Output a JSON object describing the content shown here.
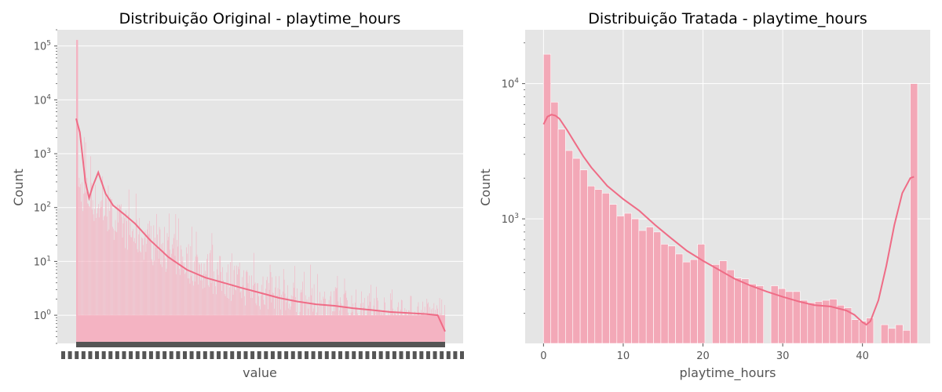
{
  "chart_data": [
    {
      "type": "bar",
      "title": "Distribuição Original - playtime_hours",
      "xlabel": "value",
      "ylabel": "Count",
      "yscale": "log",
      "ylim": [
        0.3,
        200000
      ],
      "yticks": [
        {
          "base": "10",
          "exp": "0",
          "value": 1
        },
        {
          "base": "10",
          "exp": "1",
          "value": 10
        },
        {
          "base": "10",
          "exp": "2",
          "value": 100
        },
        {
          "base": "10",
          "exp": "3",
          "value": 1000
        },
        {
          "base": "10",
          "exp": "4",
          "value": 10000
        },
        {
          "base": "10",
          "exp": "5",
          "value": 100000
        }
      ],
      "first_bar_value": 130000,
      "bar_value_profile": [
        {
          "position": 0.0,
          "typical": 300,
          "peak": 5000
        },
        {
          "position": 0.05,
          "typical": 150,
          "peak": 800
        },
        {
          "position": 0.15,
          "typical": 40,
          "peak": 200
        },
        {
          "position": 0.35,
          "typical": 8,
          "peak": 40
        },
        {
          "position": 0.6,
          "typical": 2,
          "peak": 10
        },
        {
          "position": 1.0,
          "typical": 1,
          "peak": 2
        }
      ],
      "kde": [
        {
          "x": 0.0,
          "y": 4500
        },
        {
          "x": 0.01,
          "y": 2500
        },
        {
          "x": 0.025,
          "y": 300
        },
        {
          "x": 0.035,
          "y": 150
        },
        {
          "x": 0.045,
          "y": 250
        },
        {
          "x": 0.06,
          "y": 450
        },
        {
          "x": 0.08,
          "y": 180
        },
        {
          "x": 0.1,
          "y": 110
        },
        {
          "x": 0.13,
          "y": 75
        },
        {
          "x": 0.16,
          "y": 50
        },
        {
          "x": 0.2,
          "y": 25
        },
        {
          "x": 0.25,
          "y": 12
        },
        {
          "x": 0.3,
          "y": 7
        },
        {
          "x": 0.35,
          "y": 5
        },
        {
          "x": 0.4,
          "y": 4
        },
        {
          "x": 0.45,
          "y": 3.2
        },
        {
          "x": 0.5,
          "y": 2.6
        },
        {
          "x": 0.55,
          "y": 2.1
        },
        {
          "x": 0.6,
          "y": 1.8
        },
        {
          "x": 0.65,
          "y": 1.6
        },
        {
          "x": 0.7,
          "y": 1.5
        },
        {
          "x": 0.75,
          "y": 1.35
        },
        {
          "x": 0.8,
          "y": 1.25
        },
        {
          "x": 0.85,
          "y": 1.15
        },
        {
          "x": 0.9,
          "y": 1.1
        },
        {
          "x": 0.95,
          "y": 1.05
        },
        {
          "x": 0.98,
          "y": 1.0
        },
        {
          "x": 1.0,
          "y": 0.5
        }
      ],
      "colors": {
        "bars": "#f4b3c2",
        "kde": "#ef6c86",
        "axes_bg": "#e5e5e5",
        "grid": "#ffffff",
        "xtick_labels": "#555555"
      }
    },
    {
      "type": "bar",
      "title": "Distribuição Tratada - playtime_hours",
      "xlabel": "playtime_hours",
      "ylabel": "Count",
      "yscale": "log",
      "xlim": [
        -2.3,
        48.5
      ],
      "ylim": [
        120,
        25000
      ],
      "xticks": [
        0,
        10,
        20,
        30,
        40
      ],
      "yticks": [
        {
          "base": "10",
          "exp": "3",
          "value": 1000
        },
        {
          "base": "10",
          "exp": "4",
          "value": 10000
        }
      ],
      "bin_width": 0.92,
      "bins": [
        {
          "x": 0.46,
          "y": 16500
        },
        {
          "x": 1.38,
          "y": 7300
        },
        {
          "x": 2.3,
          "y": 4600
        },
        {
          "x": 3.22,
          "y": 3200
        },
        {
          "x": 4.14,
          "y": 2800
        },
        {
          "x": 5.06,
          "y": 2300
        },
        {
          "x": 5.98,
          "y": 1750
        },
        {
          "x": 6.9,
          "y": 1650
        },
        {
          "x": 7.82,
          "y": 1550
        },
        {
          "x": 8.74,
          "y": 1280
        },
        {
          "x": 9.66,
          "y": 1050
        },
        {
          "x": 10.58,
          "y": 1100
        },
        {
          "x": 11.5,
          "y": 1000
        },
        {
          "x": 12.42,
          "y": 820
        },
        {
          "x": 13.34,
          "y": 870
        },
        {
          "x": 14.26,
          "y": 800
        },
        {
          "x": 15.18,
          "y": 650
        },
        {
          "x": 16.1,
          "y": 630
        },
        {
          "x": 17.02,
          "y": 550
        },
        {
          "x": 17.94,
          "y": 480
        },
        {
          "x": 18.86,
          "y": 500
        },
        {
          "x": 19.78,
          "y": 650
        },
        {
          "x": 21.62,
          "y": 460
        },
        {
          "x": 22.54,
          "y": 490
        },
        {
          "x": 23.46,
          "y": 420
        },
        {
          "x": 24.38,
          "y": 365
        },
        {
          "x": 25.3,
          "y": 360
        },
        {
          "x": 26.22,
          "y": 330
        },
        {
          "x": 27.14,
          "y": 320
        },
        {
          "x": 28.98,
          "y": 320
        },
        {
          "x": 29.9,
          "y": 305
        },
        {
          "x": 30.82,
          "y": 290
        },
        {
          "x": 31.74,
          "y": 290
        },
        {
          "x": 32.66,
          "y": 250
        },
        {
          "x": 33.58,
          "y": 240
        },
        {
          "x": 34.5,
          "y": 245
        },
        {
          "x": 35.42,
          "y": 250
        },
        {
          "x": 36.34,
          "y": 255
        },
        {
          "x": 37.26,
          "y": 230
        },
        {
          "x": 38.18,
          "y": 220
        },
        {
          "x": 39.1,
          "y": 180
        },
        {
          "x": 40.02,
          "y": 175
        },
        {
          "x": 40.94,
          "y": 185
        },
        {
          "x": 42.78,
          "y": 165
        },
        {
          "x": 43.7,
          "y": 155
        },
        {
          "x": 44.62,
          "y": 165
        },
        {
          "x": 45.54,
          "y": 150
        },
        {
          "x": 46.46,
          "y": 10000
        }
      ],
      "kde": [
        {
          "x": 0,
          "y": 5000
        },
        {
          "x": 0.5,
          "y": 5700
        },
        {
          "x": 1,
          "y": 5900
        },
        {
          "x": 1.5,
          "y": 5800
        },
        {
          "x": 2,
          "y": 5500
        },
        {
          "x": 3,
          "y": 4500
        },
        {
          "x": 4,
          "y": 3600
        },
        {
          "x": 5,
          "y": 2900
        },
        {
          "x": 6,
          "y": 2400
        },
        {
          "x": 7,
          "y": 2050
        },
        {
          "x": 8,
          "y": 1750
        },
        {
          "x": 10,
          "y": 1400
        },
        {
          "x": 12,
          "y": 1150
        },
        {
          "x": 14,
          "y": 900
        },
        {
          "x": 16,
          "y": 720
        },
        {
          "x": 18,
          "y": 580
        },
        {
          "x": 20,
          "y": 490
        },
        {
          "x": 22,
          "y": 420
        },
        {
          "x": 24,
          "y": 360
        },
        {
          "x": 26,
          "y": 320
        },
        {
          "x": 28,
          "y": 290
        },
        {
          "x": 30,
          "y": 265
        },
        {
          "x": 32,
          "y": 245
        },
        {
          "x": 34,
          "y": 230
        },
        {
          "x": 36,
          "y": 225
        },
        {
          "x": 38,
          "y": 210
        },
        {
          "x": 39,
          "y": 195
        },
        {
          "x": 40,
          "y": 172
        },
        {
          "x": 40.5,
          "y": 165
        },
        {
          "x": 41,
          "y": 175
        },
        {
          "x": 42,
          "y": 250
        },
        {
          "x": 43,
          "y": 450
        },
        {
          "x": 44,
          "y": 900
        },
        {
          "x": 45,
          "y": 1550
        },
        {
          "x": 46,
          "y": 2000
        },
        {
          "x": 46.46,
          "y": 2050
        }
      ],
      "colors": {
        "bars": "#f3a8b7",
        "kde": "#ef6c86",
        "axes_bg": "#e5e5e5",
        "grid": "#ffffff"
      }
    }
  ]
}
